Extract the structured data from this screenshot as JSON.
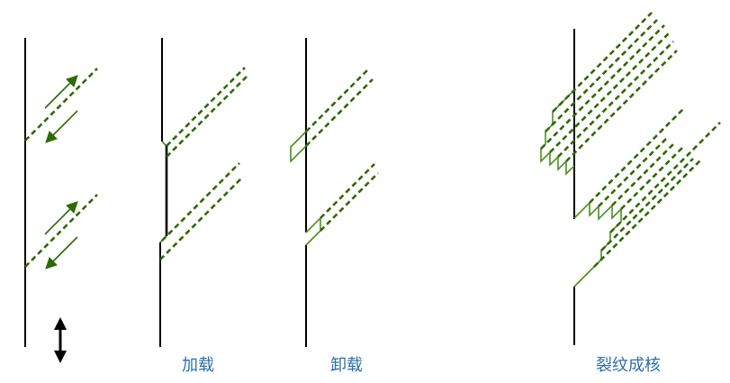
{
  "labels": {
    "loading": "加载",
    "unloading": "卸载",
    "crack_nucleation": "裂纹成核"
  },
  "colors": {
    "surface": "#000000",
    "slip_band": "#2f6a05",
    "step": "#4b8f1e",
    "label": "#2a6fad"
  },
  "icons": {
    "cyclic_load": "double-arrow-icon",
    "slip_forward": "arrow-up-right-icon",
    "slip_reverse": "arrow-down-left-icon"
  }
}
